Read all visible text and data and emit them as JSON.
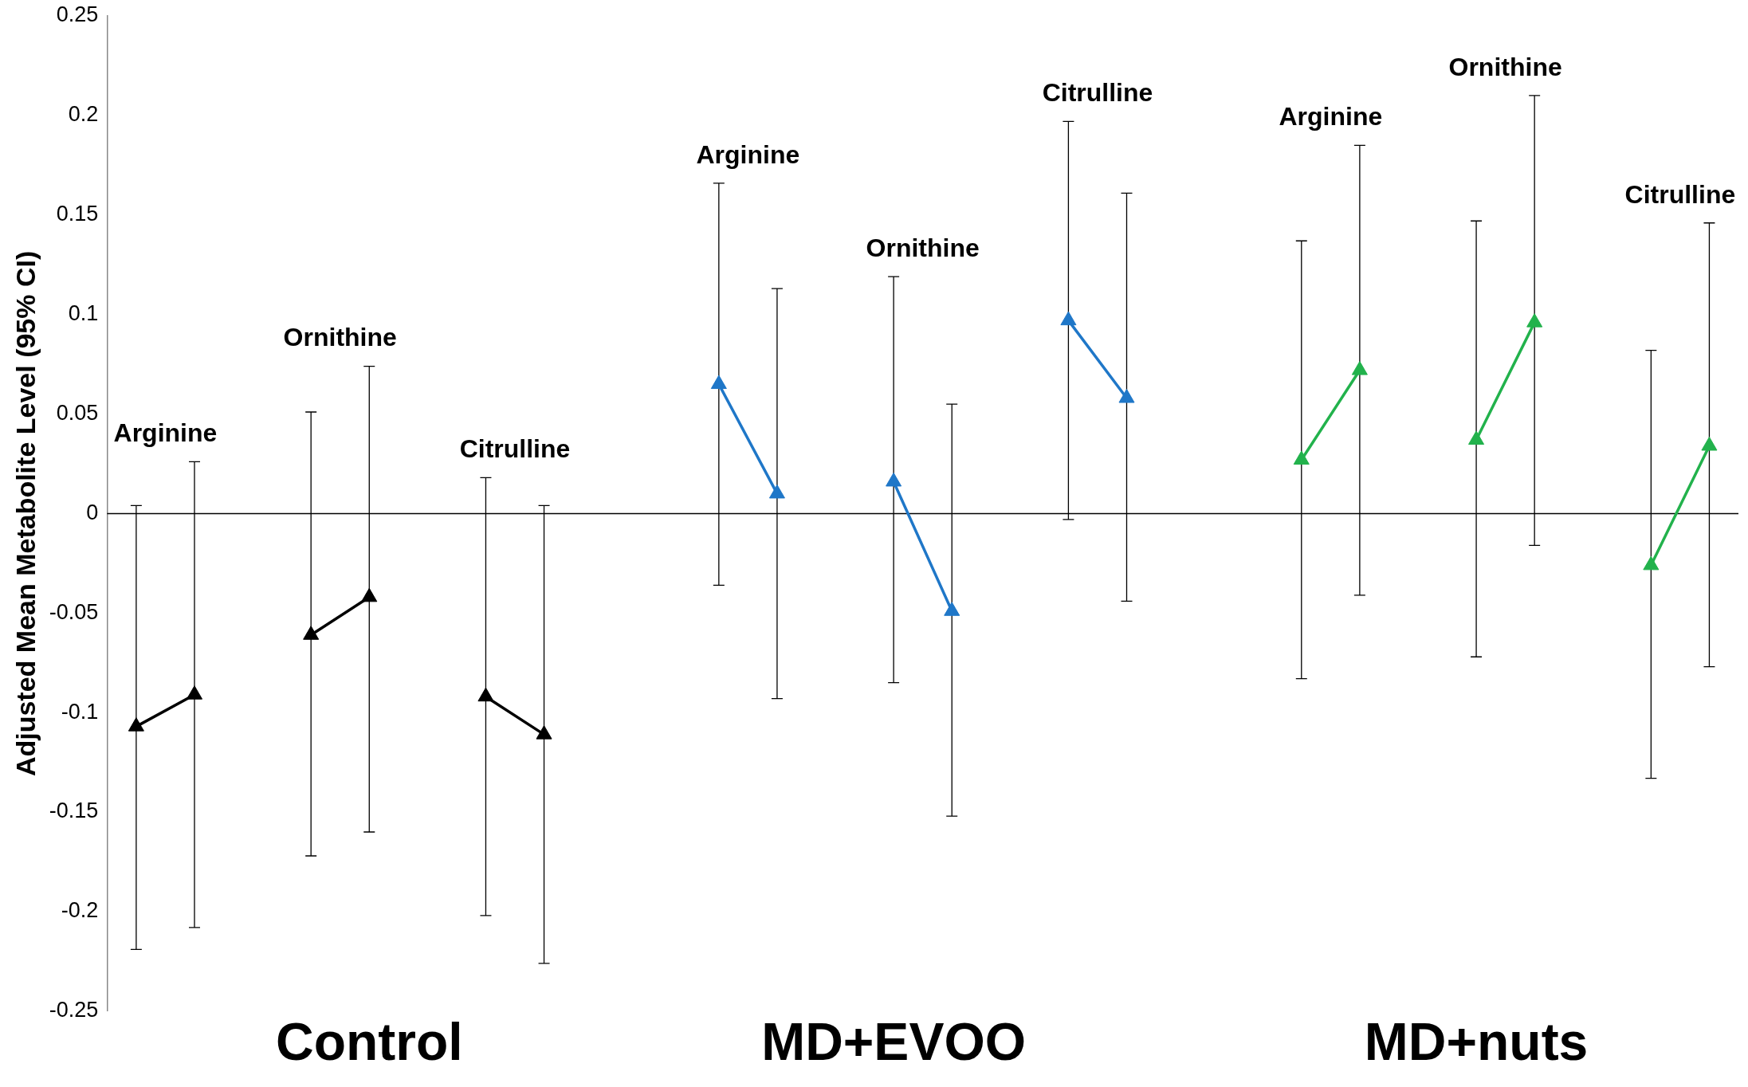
{
  "chart_data": {
    "type": "line",
    "ylabel": "Adjusted Mean Metabolite Level (95% CI)",
    "categories": [
      null,
      null,
      null,
      null,
      "Control",
      null,
      null,
      null,
      null,
      null,
      null,
      null,
      null,
      "MD+EVOO",
      null,
      null,
      null,
      null,
      null,
      null,
      null,
      null,
      null,
      "MD+nuts",
      null,
      null,
      null,
      null
    ],
    "ylim": [
      -0.25,
      0.25
    ],
    "yticks": [
      -0.25,
      -0.2,
      -0.15,
      -0.1,
      -0.05,
      0,
      0.05,
      0.1,
      0.15,
      0.2,
      0.25
    ],
    "ref_lines": [
      {
        "axis": "y",
        "value": 0,
        "color": "#000000"
      }
    ],
    "marker": "triangle",
    "line_style": "solid",
    "legend": false,
    "grid": false,
    "series": [
      {
        "color": "#000000",
        "values": [
          -0.107,
          -0.091,
          null,
          -0.061,
          -0.042,
          null,
          -0.092,
          -0.111,
          null,
          null,
          null,
          null,
          null,
          null,
          null,
          null,
          null,
          null,
          null,
          null,
          null,
          null,
          null,
          null,
          null,
          null,
          null,
          null
        ],
        "errors": [
          [
            -0.219,
            0.004
          ],
          [
            -0.208,
            0.026
          ],
          null,
          [
            -0.172,
            0.051
          ],
          [
            -0.16,
            0.074
          ],
          null,
          [
            -0.202,
            0.018
          ],
          [
            -0.226,
            0.004
          ],
          null,
          null,
          null,
          null,
          null,
          null,
          null,
          null,
          null,
          null,
          null,
          null,
          null,
          null,
          null,
          null,
          null,
          null,
          null,
          null
        ]
      },
      {
        "color": "#1f77c8",
        "values": [
          null,
          null,
          null,
          null,
          null,
          null,
          null,
          null,
          null,
          null,
          0.065,
          0.01,
          null,
          0.016,
          -0.049,
          null,
          0.097,
          0.058,
          null,
          null,
          null,
          null,
          null,
          null,
          null,
          null,
          null,
          null
        ],
        "errors": [
          null,
          null,
          null,
          null,
          null,
          null,
          null,
          null,
          null,
          null,
          [
            -0.036,
            0.166
          ],
          [
            -0.093,
            0.113
          ],
          null,
          [
            -0.085,
            0.119
          ],
          [
            -0.152,
            0.055
          ],
          null,
          [
            -0.003,
            0.197
          ],
          [
            -0.044,
            0.161
          ],
          null,
          null,
          null,
          null,
          null,
          null,
          null,
          null,
          null,
          null
        ]
      },
      {
        "color": "#22b24c",
        "values": [
          null,
          null,
          null,
          null,
          null,
          null,
          null,
          null,
          null,
          null,
          null,
          null,
          null,
          null,
          null,
          null,
          null,
          null,
          null,
          null,
          0.027,
          0.072,
          null,
          0.037,
          0.096,
          null,
          -0.026,
          0.034
        ],
        "errors": [
          null,
          null,
          null,
          null,
          null,
          null,
          null,
          null,
          null,
          null,
          null,
          null,
          null,
          null,
          null,
          null,
          null,
          null,
          null,
          null,
          [
            -0.083,
            0.137
          ],
          [
            -0.041,
            0.185
          ],
          null,
          [
            -0.072,
            0.147
          ],
          [
            -0.016,
            0.21
          ],
          null,
          [
            -0.133,
            0.082
          ],
          [
            -0.077,
            0.146
          ]
        ]
      }
    ],
    "annotations": [
      "Arginine",
      "Ornithine",
      "Citrulline",
      "Arginine",
      "Ornithine",
      "Citrulline",
      "Arginine",
      "Ornithine",
      "Citrulline"
    ]
  }
}
